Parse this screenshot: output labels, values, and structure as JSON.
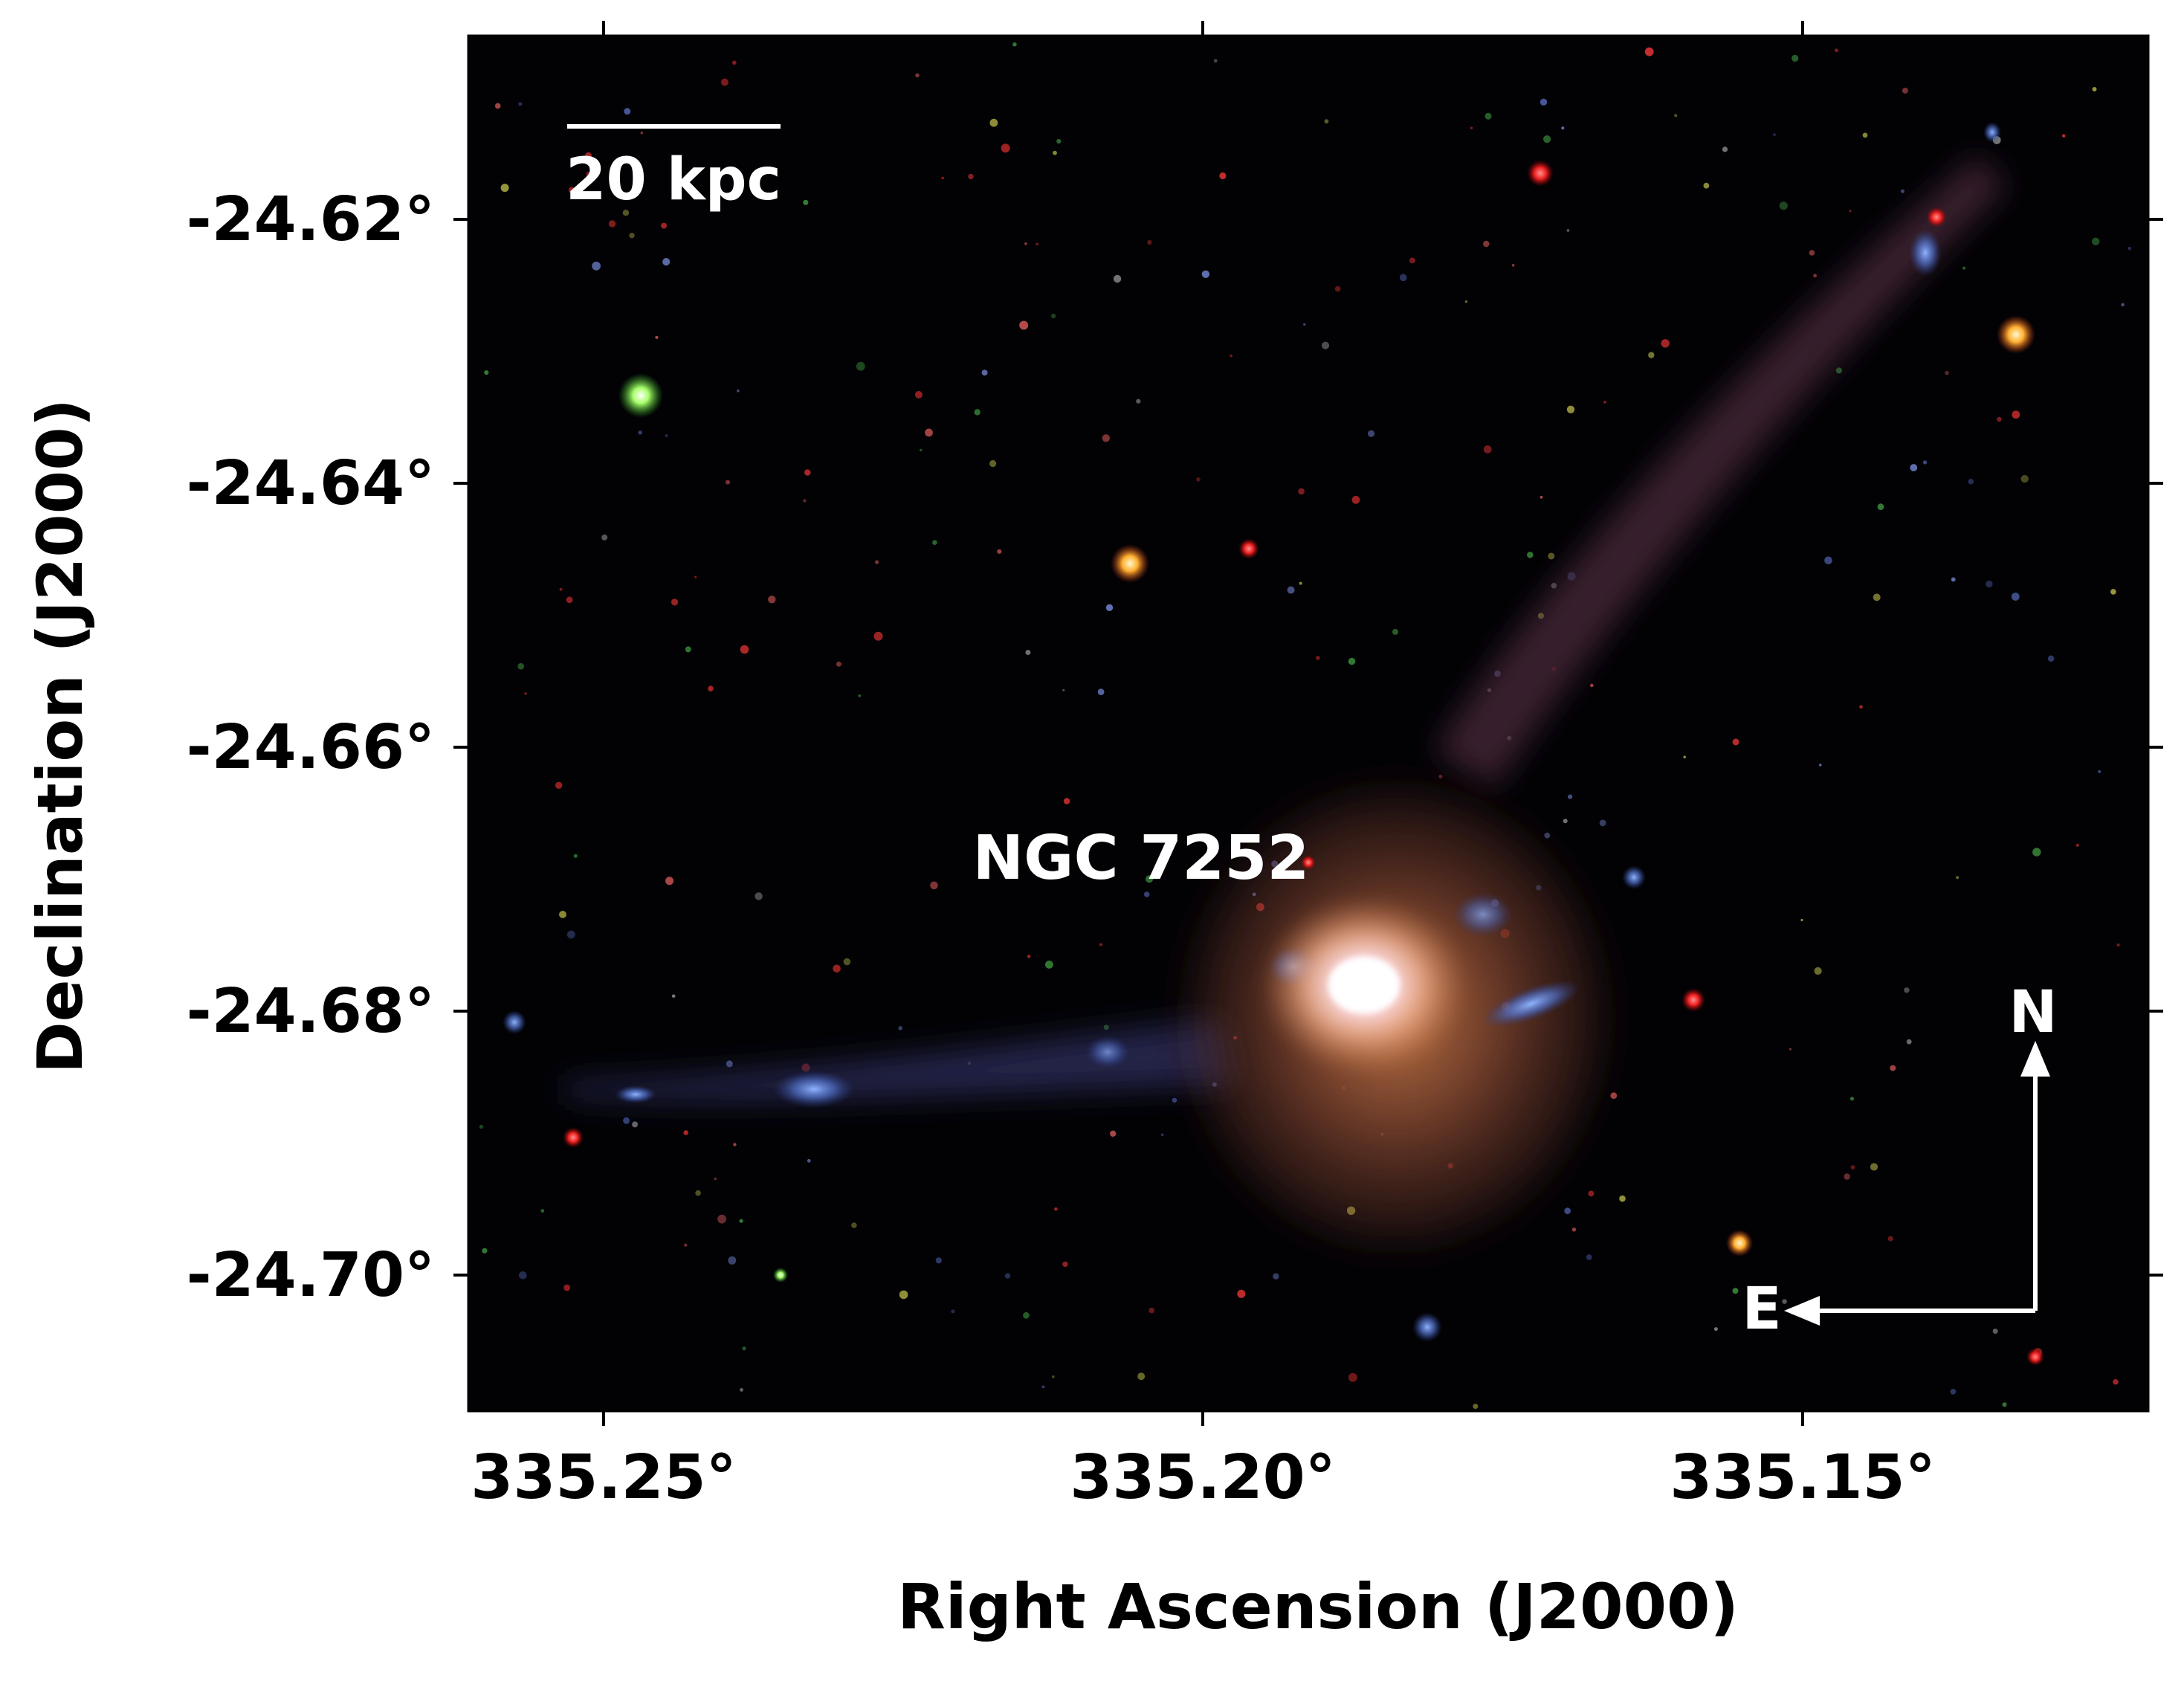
{
  "figure": {
    "x_axis": {
      "label": "Right Ascension (J2000)",
      "ticks": [
        "335.25°",
        "335.20°",
        "335.15°"
      ]
    },
    "y_axis": {
      "label": "Declination (J2000)",
      "ticks": [
        "-24.62°",
        "-24.64°",
        "-24.66°",
        "-24.68°",
        "-24.70°"
      ]
    },
    "image": {
      "scale_bar_label": "20 kpc",
      "object_label": "NGC 7252",
      "compass_north": "N",
      "compass_east": "E"
    }
  },
  "colors": {
    "sky": "#020205",
    "halo": "#8a4a32",
    "tail_blue": "#4f6fc8",
    "core": "#fff4fb",
    "annotation": "#ffffff",
    "axis": "#000000"
  }
}
